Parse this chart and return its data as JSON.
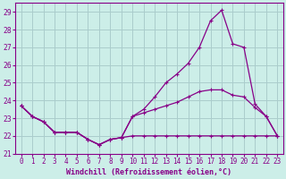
{
  "xlabel": "Windchill (Refroidissement éolien,°C)",
  "x": [
    0,
    1,
    2,
    3,
    4,
    5,
    6,
    7,
    8,
    9,
    10,
    11,
    12,
    13,
    14,
    15,
    16,
    17,
    18,
    19,
    20,
    21,
    22,
    23
  ],
  "line1_y": [
    23.7,
    23.1,
    22.8,
    22.2,
    22.2,
    22.2,
    21.8,
    21.5,
    21.8,
    21.9,
    22.0,
    22.0,
    22.0,
    22.0,
    22.0,
    22.0,
    22.0,
    22.0,
    22.0,
    22.0,
    22.0,
    22.0,
    22.0,
    22.0
  ],
  "line2_y": [
    23.7,
    23.1,
    22.8,
    22.2,
    22.2,
    22.2,
    21.8,
    21.5,
    21.8,
    21.9,
    23.1,
    23.5,
    24.2,
    25.0,
    25.5,
    26.1,
    27.0,
    28.5,
    29.1,
    27.2,
    27.0,
    23.8,
    23.1,
    22.0
  ],
  "line3_y": [
    23.7,
    23.1,
    22.8,
    22.2,
    22.2,
    22.2,
    21.8,
    21.5,
    21.8,
    21.9,
    23.1,
    23.3,
    23.5,
    23.7,
    23.9,
    24.2,
    24.5,
    24.6,
    24.6,
    24.3,
    24.2,
    23.6,
    23.1,
    22.0
  ],
  "line_color": "#880088",
  "bg_color": "#cceee8",
  "grid_color": "#aacccc",
  "ylim": [
    21.0,
    29.5
  ],
  "yticks": [
    21,
    22,
    23,
    24,
    25,
    26,
    27,
    28,
    29
  ],
  "xticks": [
    0,
    1,
    2,
    3,
    4,
    5,
    6,
    7,
    8,
    9,
    10,
    11,
    12,
    13,
    14,
    15,
    16,
    17,
    18,
    19,
    20,
    21,
    22,
    23
  ],
  "tick_fontsize": 5.5,
  "xlabel_fontsize": 6.0
}
